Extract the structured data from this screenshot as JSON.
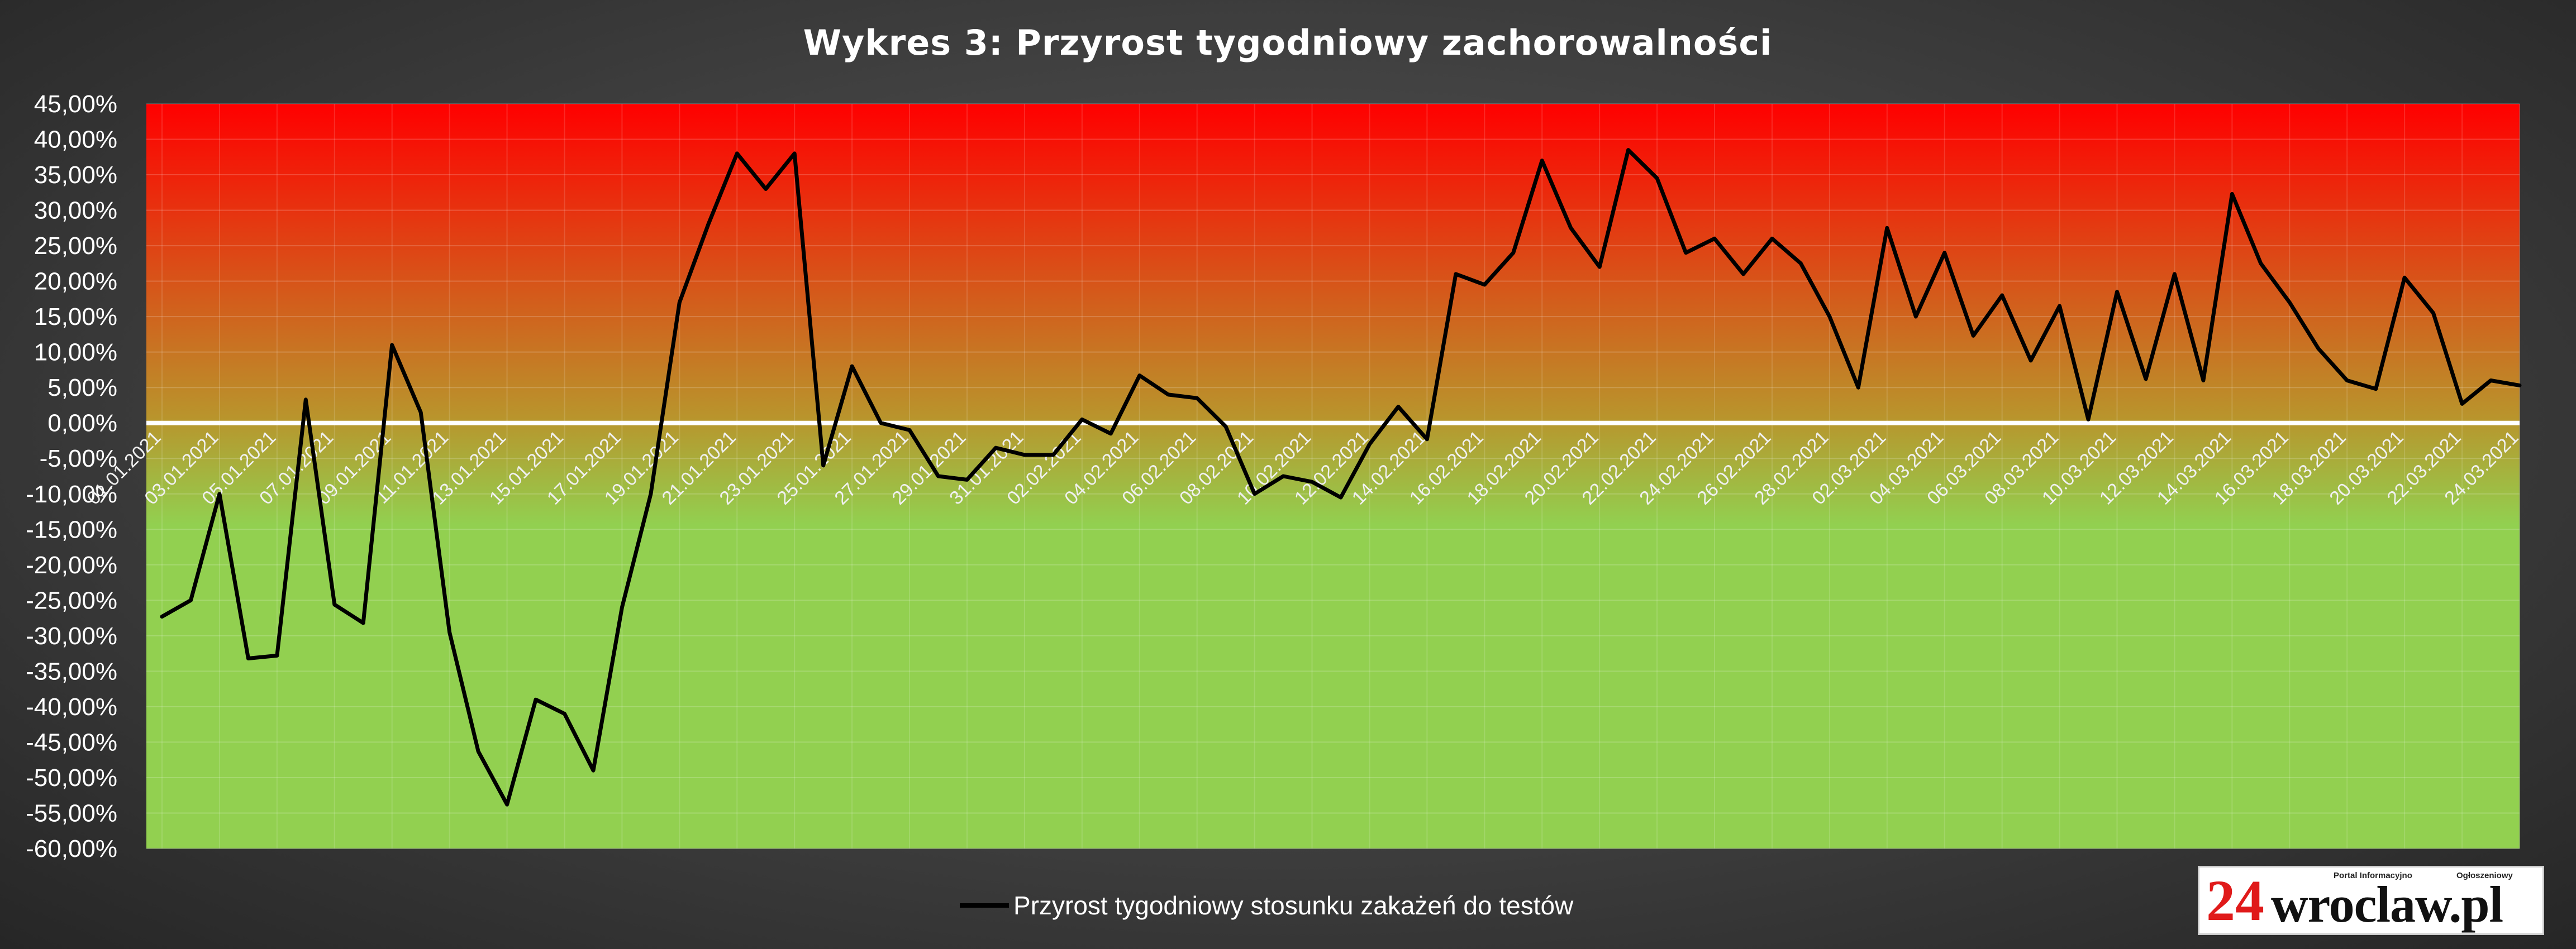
{
  "chart_data": {
    "type": "line",
    "title": "Wykres 3: Przyrost tygodniowy zachorowalności",
    "xlabel": "",
    "ylabel": "",
    "ylim": [
      -60,
      45
    ],
    "y_ticks": [
      "45,00%",
      "40,00%",
      "35,00%",
      "30,00%",
      "25,00%",
      "20,00%",
      "15,00%",
      "10,00%",
      "5,00%",
      "0,00%",
      "-5,00%",
      "-10,00%",
      "-15,00%",
      "-20,00%",
      "-25,00%",
      "-30,00%",
      "-35,00%",
      "-40,00%",
      "-45,00%",
      "-50,00%",
      "-55,00%",
      "-60,00%"
    ],
    "x_ticks": [
      "01.01.2021",
      "03.01.2021",
      "05.01.2021",
      "07.01.2021",
      "09.01.2021",
      "11.01.2021",
      "13.01.2021",
      "15.01.2021",
      "17.01.2021",
      "19.01.2021",
      "21.01.2021",
      "23.01.2021",
      "25.01.2021",
      "27.01.2021",
      "29.01.2021",
      "31.01.2021",
      "02.02.2021",
      "04.02.2021",
      "06.02.2021",
      "08.02.2021",
      "10.02.2021",
      "12.02.2021",
      "14.02.2021",
      "16.02.2021",
      "18.02.2021",
      "20.02.2021",
      "22.02.2021",
      "24.02.2021",
      "26.02.2021",
      "28.02.2021",
      "02.03.2021",
      "04.03.2021",
      "06.03.2021",
      "08.03.2021",
      "10.03.2021",
      "12.03.2021",
      "14.03.2021",
      "16.03.2021",
      "18.03.2021",
      "20.03.2021",
      "22.03.2021",
      "24.03.2021"
    ],
    "x_start": "2021-01-01",
    "x_end": "2021-03-25",
    "series": [
      {
        "name": "Przyrost tygodniowy stosunku zakażeń do testów",
        "color": "#000000",
        "values": [
          -27.3,
          -25,
          -10,
          -33.2,
          -32.8,
          3.3,
          -25.6,
          -28.2,
          11,
          1.5,
          -29.5,
          -46.3,
          -53.8,
          -39,
          -41,
          -49,
          -26,
          -10,
          17,
          28,
          38,
          33,
          38,
          -6,
          8,
          0,
          -1,
          -7.5,
          -8,
          -3.5,
          -4.5,
          -4.5,
          0.5,
          -1.5,
          6.7,
          4,
          3.5,
          -0.5,
          -10,
          -7.5,
          -8.3,
          -10.5,
          -3,
          2.3,
          -2.3,
          21,
          19.5,
          24,
          37,
          27.5,
          22,
          38.5,
          34.5,
          24,
          26,
          21,
          26,
          22.5,
          15,
          5,
          27.5,
          15,
          24,
          12.3,
          18,
          8.8,
          16.5,
          0.5,
          18.5,
          6.2,
          21,
          6,
          32.3,
          22.5,
          17,
          10.5,
          6,
          4.8,
          20.5,
          15.5,
          2.7,
          6,
          5.3
        ]
      }
    ],
    "background_bands": {
      "top_color": "#ff0000",
      "mid_color": "#b39a2e",
      "bottom_color": "#92d050"
    },
    "zero_line_color": "#ffffff",
    "grid": true,
    "legend_position": "bottom"
  },
  "logo": {
    "number": "24",
    "word": "wroclaw.pl",
    "tagline_left": "Portal Informacyjno",
    "tagline_right": "Ogłoszeniowy"
  }
}
